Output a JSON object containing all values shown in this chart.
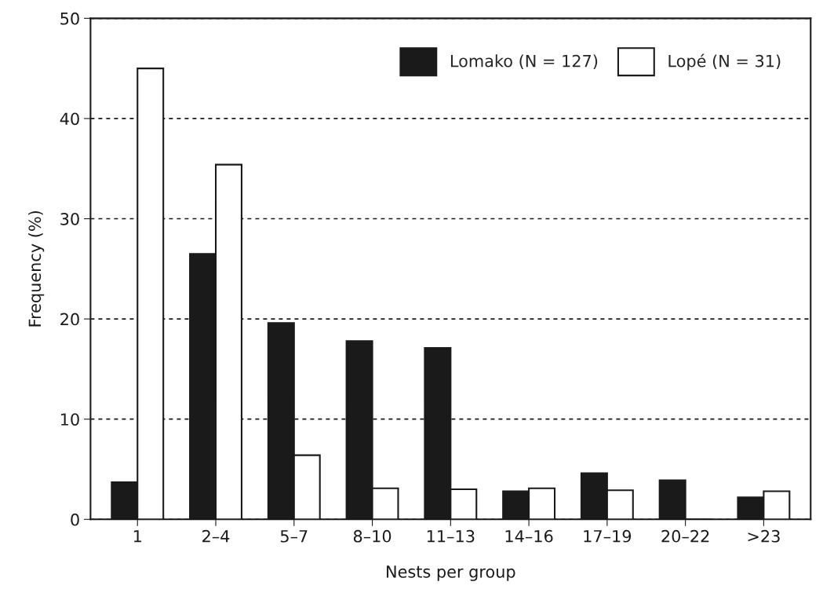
{
  "chart_data": {
    "type": "bar",
    "xlabel": "Nests per group",
    "ylabel": "Frequency (%)",
    "categories": [
      "1",
      "2–4",
      "5–7",
      "8–10",
      "11–13",
      "14–16",
      "17–19",
      "20–22",
      ">23"
    ],
    "series": [
      {
        "name": "Lomako (N = 127)",
        "color": "#1a1a1a",
        "values": [
          3.7,
          26.5,
          19.6,
          17.8,
          17.1,
          2.8,
          4.6,
          3.9,
          2.2
        ]
      },
      {
        "name": "Lopé (N = 31)",
        "color": "#ffffff",
        "values": [
          45,
          35.4,
          6.4,
          3.1,
          3.0,
          3.1,
          2.9,
          0,
          2.8
        ]
      }
    ],
    "ylim": [
      0,
      50
    ],
    "yticks": [
      0,
      10,
      20,
      30,
      40,
      50
    ],
    "grid": "y",
    "line_style": "dashed",
    "legend": "top right"
  }
}
